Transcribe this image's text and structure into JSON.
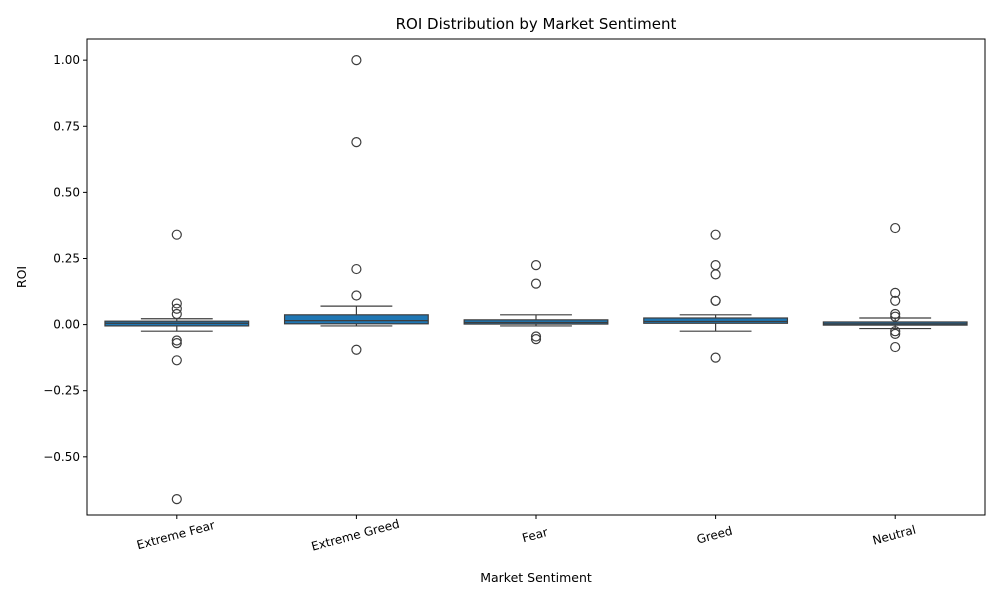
{
  "chart_data": {
    "type": "box",
    "title": "ROI Distribution by Market Sentiment",
    "xlabel": "Market Sentiment",
    "ylabel": "ROI",
    "ylim": [
      -0.72,
      1.08
    ],
    "yticks": [
      -0.5,
      -0.25,
      0.0,
      0.25,
      0.5,
      0.75,
      1.0
    ],
    "ytick_labels": [
      "−0.50",
      "−0.25",
      "0.00",
      "0.25",
      "0.50",
      "0.75",
      "1.00"
    ],
    "grid": false,
    "box_color": "#1f77b4",
    "categories": [
      "Extreme Fear",
      "Extreme Greed",
      "Fear",
      "Greed",
      "Neutral"
    ],
    "boxes": [
      {
        "category": "Extreme Fear",
        "whisker_low": -0.025,
        "q1": -0.005,
        "median": 0.005,
        "q3": 0.013,
        "whisker_high": 0.022,
        "outliers": [
          0.34,
          0.08,
          0.06,
          0.04,
          -0.06,
          -0.07,
          -0.135,
          -0.66
        ]
      },
      {
        "category": "Extreme Greed",
        "whisker_low": -0.005,
        "q1": 0.003,
        "median": 0.015,
        "q3": 0.037,
        "whisker_high": 0.07,
        "outliers": [
          1.0,
          0.69,
          0.21,
          0.11,
          -0.095
        ]
      },
      {
        "category": "Fear",
        "whisker_low": -0.005,
        "q1": 0.002,
        "median": 0.008,
        "q3": 0.018,
        "whisker_high": 0.037,
        "outliers": [
          0.225,
          0.155,
          -0.045,
          -0.055
        ]
      },
      {
        "category": "Greed",
        "whisker_low": -0.025,
        "q1": 0.005,
        "median": 0.012,
        "q3": 0.025,
        "whisker_high": 0.037,
        "outliers": [
          0.34,
          0.225,
          0.19,
          0.09,
          0.09,
          -0.125
        ]
      },
      {
        "category": "Neutral",
        "whisker_low": -0.015,
        "q1": -0.002,
        "median": 0.003,
        "q3": 0.01,
        "whisker_high": 0.025,
        "outliers": [
          0.365,
          0.12,
          0.09,
          0.04,
          0.03,
          -0.025,
          -0.035,
          -0.085
        ]
      }
    ]
  }
}
